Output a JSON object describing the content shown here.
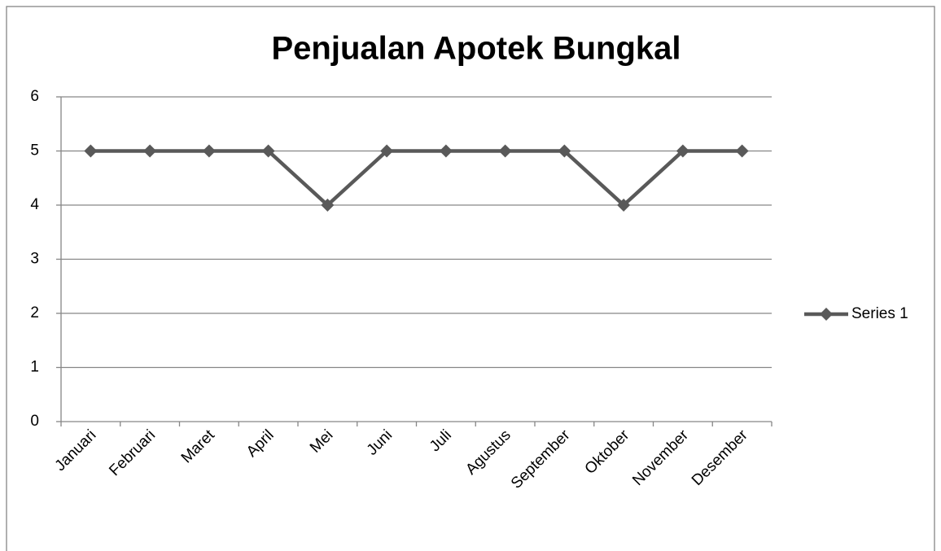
{
  "chart_data": {
    "type": "line",
    "title": "Penjualan Apotek Bungkal",
    "categories": [
      "Januari",
      "Februari",
      "Maret",
      "April",
      "Mei",
      "Juni",
      "Juli",
      "Agustus",
      "September",
      "Oktober",
      "November",
      "Desember"
    ],
    "series": [
      {
        "name": "Series 1",
        "color": "#595959",
        "values": [
          5,
          5,
          5,
          5,
          4,
          5,
          5,
          5,
          5,
          4,
          5,
          5
        ]
      }
    ],
    "ylim": [
      0,
      6
    ],
    "yticks": [
      0,
      1,
      2,
      3,
      4,
      5,
      6
    ],
    "grid": true,
    "legend": "right"
  }
}
